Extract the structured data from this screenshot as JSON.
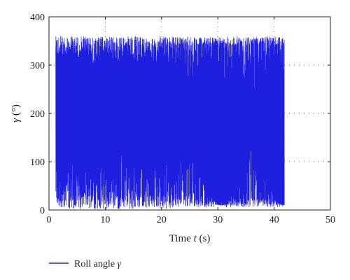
{
  "chart_data": {
    "type": "line",
    "xlabel": "Time t (s)",
    "xlabel_parts": [
      "Time ",
      "t",
      " (s)"
    ],
    "ylabel": "γ (°)",
    "ylabel_parts": [
      "γ",
      " (°)"
    ],
    "xlim": [
      0,
      50
    ],
    "ylim": [
      0,
      400
    ],
    "xticks": [
      0,
      10,
      20,
      30,
      40,
      50
    ],
    "yticks": [
      0,
      100,
      200,
      300,
      400
    ],
    "grid": "dotted",
    "legend_position": "bottom-left",
    "series": [
      {
        "name": "Roll angle γ",
        "name_parts": [
          "Roll angle ",
          "γ"
        ],
        "color": "#1f1fe0",
        "t_start": 1.2,
        "t_end": 41.8,
        "y_min": 2,
        "y_max": 360,
        "description": "rapidly oscillating roll angle filling 0–360°"
      }
    ]
  }
}
